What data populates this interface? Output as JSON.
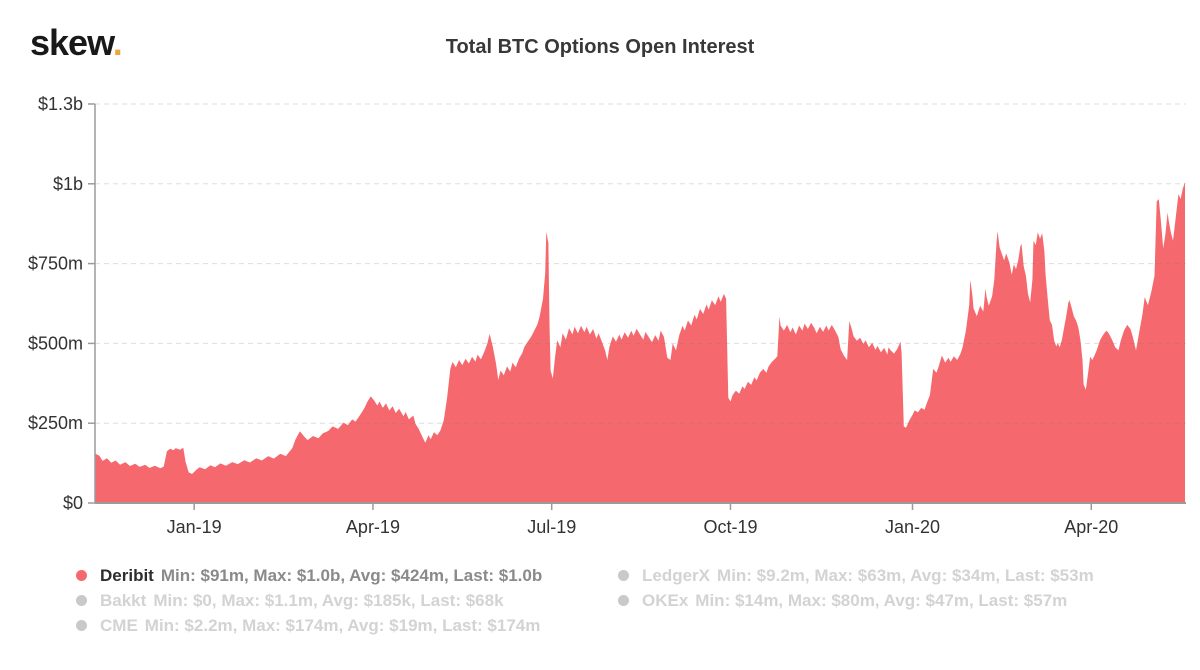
{
  "logo": {
    "text": "skew",
    "dot": "."
  },
  "title": "Total BTC Options Open Interest",
  "colors": {
    "area": "#f5696e",
    "accent_red": "#f5696e",
    "muted_dot": "#c9c9c9",
    "logo_dot": "#efa53d",
    "axis": "#9b9b9b",
    "tick_label": "#333333",
    "gridline": "#7a7a7a"
  },
  "chart_data": {
    "type": "area",
    "title": "Total BTC Options Open Interest",
    "visible_series": "Deribit",
    "area_color": "#f5696e",
    "values_unit": "million USD",
    "ylim": [
      0,
      1250
    ],
    "grid": "dashed-horizontal",
    "y_ticks": [
      {
        "v": 0,
        "label": "$0"
      },
      {
        "v": 250,
        "label": "$250m"
      },
      {
        "v": 500,
        "label": "$500m"
      },
      {
        "v": 750,
        "label": "$750m"
      },
      {
        "v": 1000,
        "label": "$1b"
      },
      {
        "v": 1250,
        "label": "$1.3b"
      }
    ],
    "x_ticks": [
      {
        "x": 0.091,
        "label": "Jan-19"
      },
      {
        "x": 0.255,
        "label": "Apr-19"
      },
      {
        "x": 0.419,
        "label": "Jul-19"
      },
      {
        "x": 0.583,
        "label": "Oct-19"
      },
      {
        "x": 0.75,
        "label": "Jan-20"
      },
      {
        "x": 0.914,
        "label": "Apr-20"
      }
    ],
    "points": [
      [
        0.0,
        155
      ],
      [
        0.004,
        148
      ],
      [
        0.007,
        132
      ],
      [
        0.011,
        140
      ],
      [
        0.015,
        126
      ],
      [
        0.019,
        133
      ],
      [
        0.023,
        120
      ],
      [
        0.028,
        128
      ],
      [
        0.032,
        116
      ],
      [
        0.037,
        123
      ],
      [
        0.041,
        113
      ],
      [
        0.046,
        120
      ],
      [
        0.05,
        110
      ],
      [
        0.055,
        117
      ],
      [
        0.06,
        109
      ],
      [
        0.063,
        114
      ],
      [
        0.066,
        162
      ],
      [
        0.069,
        170
      ],
      [
        0.072,
        165
      ],
      [
        0.074,
        172
      ],
      [
        0.078,
        167
      ],
      [
        0.081,
        173
      ],
      [
        0.083,
        130
      ],
      [
        0.086,
        96
      ],
      [
        0.089,
        91
      ],
      [
        0.093,
        104
      ],
      [
        0.096,
        112
      ],
      [
        0.101,
        106
      ],
      [
        0.106,
        118
      ],
      [
        0.11,
        112
      ],
      [
        0.115,
        124
      ],
      [
        0.12,
        117
      ],
      [
        0.126,
        128
      ],
      [
        0.131,
        122
      ],
      [
        0.137,
        134
      ],
      [
        0.142,
        127
      ],
      [
        0.148,
        140
      ],
      [
        0.153,
        133
      ],
      [
        0.159,
        147
      ],
      [
        0.164,
        139
      ],
      [
        0.17,
        154
      ],
      [
        0.175,
        147
      ],
      [
        0.181,
        172
      ],
      [
        0.184,
        200
      ],
      [
        0.188,
        225
      ],
      [
        0.192,
        208
      ],
      [
        0.195,
        197
      ],
      [
        0.2,
        210
      ],
      [
        0.205,
        203
      ],
      [
        0.209,
        218
      ],
      [
        0.214,
        226
      ],
      [
        0.218,
        240
      ],
      [
        0.223,
        232
      ],
      [
        0.228,
        252
      ],
      [
        0.232,
        244
      ],
      [
        0.236,
        262
      ],
      [
        0.239,
        255
      ],
      [
        0.243,
        275
      ],
      [
        0.247,
        296
      ],
      [
        0.25,
        318
      ],
      [
        0.253,
        334
      ],
      [
        0.256,
        322
      ],
      [
        0.259,
        305
      ],
      [
        0.261,
        318
      ],
      [
        0.264,
        298
      ],
      [
        0.267,
        312
      ],
      [
        0.27,
        290
      ],
      [
        0.273,
        303
      ],
      [
        0.276,
        282
      ],
      [
        0.279,
        295
      ],
      [
        0.283,
        272
      ],
      [
        0.285,
        285
      ],
      [
        0.288,
        262
      ],
      [
        0.292,
        274
      ],
      [
        0.294,
        248
      ],
      [
        0.297,
        232
      ],
      [
        0.3,
        210
      ],
      [
        0.303,
        189
      ],
      [
        0.306,
        212
      ],
      [
        0.308,
        200
      ],
      [
        0.311,
        222
      ],
      [
        0.314,
        212
      ],
      [
        0.317,
        228
      ],
      [
        0.32,
        260
      ],
      [
        0.323,
        330
      ],
      [
        0.326,
        420
      ],
      [
        0.328,
        442
      ],
      [
        0.331,
        425
      ],
      [
        0.334,
        448
      ],
      [
        0.337,
        432
      ],
      [
        0.34,
        452
      ],
      [
        0.343,
        437
      ],
      [
        0.346,
        458
      ],
      [
        0.349,
        443
      ],
      [
        0.351,
        465
      ],
      [
        0.354,
        450
      ],
      [
        0.357,
        472
      ],
      [
        0.36,
        500
      ],
      [
        0.362,
        530
      ],
      [
        0.365,
        490
      ],
      [
        0.368,
        435
      ],
      [
        0.37,
        385
      ],
      [
        0.372,
        415
      ],
      [
        0.375,
        400
      ],
      [
        0.378,
        428
      ],
      [
        0.381,
        412
      ],
      [
        0.383,
        440
      ],
      [
        0.386,
        425
      ],
      [
        0.389,
        452
      ],
      [
        0.392,
        470
      ],
      [
        0.394,
        490
      ],
      [
        0.397,
        505
      ],
      [
        0.4,
        520
      ],
      [
        0.403,
        540
      ],
      [
        0.406,
        560
      ],
      [
        0.408,
        585
      ],
      [
        0.411,
        640
      ],
      [
        0.413,
        720
      ],
      [
        0.414,
        850
      ],
      [
        0.416,
        815
      ],
      [
        0.417,
        560
      ],
      [
        0.418,
        415
      ],
      [
        0.42,
        390
      ],
      [
        0.422,
        455
      ],
      [
        0.424,
        510
      ],
      [
        0.427,
        488
      ],
      [
        0.429,
        532
      ],
      [
        0.432,
        512
      ],
      [
        0.435,
        548
      ],
      [
        0.438,
        528
      ],
      [
        0.44,
        552
      ],
      [
        0.443,
        532
      ],
      [
        0.446,
        555
      ],
      [
        0.449,
        535
      ],
      [
        0.451,
        552
      ],
      [
        0.454,
        528
      ],
      [
        0.457,
        545
      ],
      [
        0.46,
        515
      ],
      [
        0.462,
        532
      ],
      [
        0.465,
        505
      ],
      [
        0.468,
        478
      ],
      [
        0.47,
        448
      ],
      [
        0.472,
        490
      ],
      [
        0.475,
        522
      ],
      [
        0.478,
        505
      ],
      [
        0.481,
        528
      ],
      [
        0.483,
        512
      ],
      [
        0.486,
        535
      ],
      [
        0.489,
        518
      ],
      [
        0.492,
        540
      ],
      [
        0.494,
        524
      ],
      [
        0.497,
        546
      ],
      [
        0.5,
        528
      ],
      [
        0.503,
        512
      ],
      [
        0.505,
        536
      ],
      [
        0.508,
        520
      ],
      [
        0.511,
        504
      ],
      [
        0.514,
        526
      ],
      [
        0.517,
        508
      ],
      [
        0.519,
        540
      ],
      [
        0.522,
        520
      ],
      [
        0.525,
        455
      ],
      [
        0.528,
        448
      ],
      [
        0.53,
        500
      ],
      [
        0.533,
        478
      ],
      [
        0.536,
        525
      ],
      [
        0.539,
        555
      ],
      [
        0.541,
        540
      ],
      [
        0.544,
        572
      ],
      [
        0.547,
        556
      ],
      [
        0.55,
        590
      ],
      [
        0.552,
        575
      ],
      [
        0.555,
        608
      ],
      [
        0.558,
        592
      ],
      [
        0.561,
        622
      ],
      [
        0.563,
        606
      ],
      [
        0.566,
        635
      ],
      [
        0.569,
        620
      ],
      [
        0.572,
        648
      ],
      [
        0.574,
        630
      ],
      [
        0.577,
        655
      ],
      [
        0.579,
        640
      ],
      [
        0.581,
        330
      ],
      [
        0.583,
        318
      ],
      [
        0.585,
        338
      ],
      [
        0.588,
        352
      ],
      [
        0.591,
        342
      ],
      [
        0.594,
        366
      ],
      [
        0.596,
        357
      ],
      [
        0.599,
        380
      ],
      [
        0.602,
        370
      ],
      [
        0.605,
        394
      ],
      [
        0.607,
        384
      ],
      [
        0.61,
        408
      ],
      [
        0.613,
        420
      ],
      [
        0.616,
        408
      ],
      [
        0.618,
        428
      ],
      [
        0.621,
        442
      ],
      [
        0.624,
        452
      ],
      [
        0.626,
        460
      ],
      [
        0.628,
        585
      ],
      [
        0.629,
        555
      ],
      [
        0.632,
        540
      ],
      [
        0.635,
        558
      ],
      [
        0.638,
        535
      ],
      [
        0.64,
        550
      ],
      [
        0.643,
        528
      ],
      [
        0.646,
        556
      ],
      [
        0.649,
        540
      ],
      [
        0.651,
        562
      ],
      [
        0.654,
        545
      ],
      [
        0.657,
        565
      ],
      [
        0.66,
        548
      ],
      [
        0.662,
        532
      ],
      [
        0.665,
        552
      ],
      [
        0.668,
        536
      ],
      [
        0.671,
        556
      ],
      [
        0.673,
        540
      ],
      [
        0.676,
        558
      ],
      [
        0.679,
        540
      ],
      [
        0.682,
        520
      ],
      [
        0.684,
        482
      ],
      [
        0.687,
        462
      ],
      [
        0.69,
        448
      ],
      [
        0.692,
        570
      ],
      [
        0.694,
        548
      ],
      [
        0.696,
        522
      ],
      [
        0.699,
        508
      ],
      [
        0.702,
        518
      ],
      [
        0.705,
        498
      ],
      [
        0.707,
        510
      ],
      [
        0.71,
        488
      ],
      [
        0.713,
        502
      ],
      [
        0.716,
        480
      ],
      [
        0.718,
        492
      ],
      [
        0.721,
        472
      ],
      [
        0.724,
        486
      ],
      [
        0.727,
        465
      ],
      [
        0.728,
        488
      ],
      [
        0.73,
        478
      ],
      [
        0.733,
        468
      ],
      [
        0.736,
        482
      ],
      [
        0.739,
        505
      ],
      [
        0.74,
        470
      ],
      [
        0.742,
        240
      ],
      [
        0.744,
        236
      ],
      [
        0.747,
        258
      ],
      [
        0.75,
        276
      ],
      [
        0.752,
        290
      ],
      [
        0.755,
        284
      ],
      [
        0.758,
        298
      ],
      [
        0.761,
        292
      ],
      [
        0.763,
        312
      ],
      [
        0.766,
        338
      ],
      [
        0.769,
        420
      ],
      [
        0.772,
        408
      ],
      [
        0.774,
        428
      ],
      [
        0.777,
        462
      ],
      [
        0.78,
        440
      ],
      [
        0.783,
        455
      ],
      [
        0.785,
        442
      ],
      [
        0.788,
        460
      ],
      [
        0.791,
        448
      ],
      [
        0.794,
        468
      ],
      [
        0.796,
        488
      ],
      [
        0.799,
        540
      ],
      [
        0.802,
        620
      ],
      [
        0.803,
        700
      ],
      [
        0.805,
        648
      ],
      [
        0.806,
        610
      ],
      [
        0.809,
        585
      ],
      [
        0.812,
        618
      ],
      [
        0.815,
        600
      ],
      [
        0.817,
        672
      ],
      [
        0.818,
        645
      ],
      [
        0.82,
        618
      ],
      [
        0.823,
        648
      ],
      [
        0.825,
        700
      ],
      [
        0.827,
        810
      ],
      [
        0.828,
        852
      ],
      [
        0.83,
        800
      ],
      [
        0.832,
        780
      ],
      [
        0.834,
        760
      ],
      [
        0.836,
        782
      ],
      [
        0.838,
        762
      ],
      [
        0.839,
        752
      ],
      [
        0.841,
        715
      ],
      [
        0.843,
        748
      ],
      [
        0.845,
        732
      ],
      [
        0.847,
        760
      ],
      [
        0.849,
        805
      ],
      [
        0.85,
        812
      ],
      [
        0.852,
        742
      ],
      [
        0.854,
        712
      ],
      [
        0.856,
        655
      ],
      [
        0.858,
        628
      ],
      [
        0.86,
        700
      ],
      [
        0.861,
        822
      ],
      [
        0.863,
        808
      ],
      [
        0.865,
        848
      ],
      [
        0.867,
        828
      ],
      [
        0.869,
        845
      ],
      [
        0.871,
        788
      ],
      [
        0.872,
        718
      ],
      [
        0.874,
        640
      ],
      [
        0.876,
        572
      ],
      [
        0.878,
        558
      ],
      [
        0.88,
        508
      ],
      [
        0.882,
        490
      ],
      [
        0.883,
        502
      ],
      [
        0.885,
        488
      ],
      [
        0.887,
        510
      ],
      [
        0.889,
        548
      ],
      [
        0.891,
        585
      ],
      [
        0.893,
        628
      ],
      [
        0.894,
        635
      ],
      [
        0.896,
        612
      ],
      [
        0.898,
        585
      ],
      [
        0.9,
        572
      ],
      [
        0.902,
        552
      ],
      [
        0.904,
        512
      ],
      [
        0.906,
        448
      ],
      [
        0.907,
        372
      ],
      [
        0.909,
        355
      ],
      [
        0.911,
        405
      ],
      [
        0.913,
        458
      ],
      [
        0.915,
        448
      ],
      [
        0.917,
        462
      ],
      [
        0.919,
        478
      ],
      [
        0.922,
        510
      ],
      [
        0.925,
        528
      ],
      [
        0.928,
        540
      ],
      [
        0.93,
        532
      ],
      [
        0.933,
        512
      ],
      [
        0.936,
        488
      ],
      [
        0.939,
        478
      ],
      [
        0.941,
        508
      ],
      [
        0.944,
        540
      ],
      [
        0.947,
        558
      ],
      [
        0.95,
        545
      ],
      [
        0.952,
        522
      ],
      [
        0.955,
        478
      ],
      [
        0.958,
        535
      ],
      [
        0.961,
        592
      ],
      [
        0.963,
        645
      ],
      [
        0.966,
        620
      ],
      [
        0.969,
        660
      ],
      [
        0.972,
        712
      ],
      [
        0.974,
        945
      ],
      [
        0.976,
        952
      ],
      [
        0.978,
        880
      ],
      [
        0.98,
        798
      ],
      [
        0.982,
        842
      ],
      [
        0.984,
        910
      ],
      [
        0.985,
        885
      ],
      [
        0.987,
        848
      ],
      [
        0.989,
        822
      ],
      [
        0.991,
        880
      ],
      [
        0.993,
        940
      ],
      [
        0.994,
        968
      ],
      [
        0.996,
        952
      ],
      [
        0.998,
        985
      ],
      [
        1.0,
        1005
      ]
    ],
    "legend": {
      "columns": [
        [
          {
            "name": "Deribit",
            "stats": "Min: $91m, Max: $1.0b, Avg: $424m, Last: $1.0b",
            "active": true,
            "dot_color": "#f5696e"
          },
          {
            "name": "Bakkt",
            "stats": "Min: $0, Max: $1.1m, Avg: $185k, Last: $68k",
            "active": false,
            "dot_color": "#c9c9c9"
          },
          {
            "name": "CME",
            "stats": "Min: $2.2m, Max: $174m, Avg: $19m, Last: $174m",
            "active": false,
            "dot_color": "#c9c9c9"
          }
        ],
        [
          {
            "name": "LedgerX",
            "stats": "Min: $9.2m, Max: $63m, Avg: $34m, Last: $53m",
            "active": false,
            "dot_color": "#c9c9c9"
          },
          {
            "name": "OKEx",
            "stats": "Min: $14m, Max: $80m, Avg: $47m, Last: $57m",
            "active": false,
            "dot_color": "#c9c9c9"
          }
        ]
      ]
    }
  }
}
